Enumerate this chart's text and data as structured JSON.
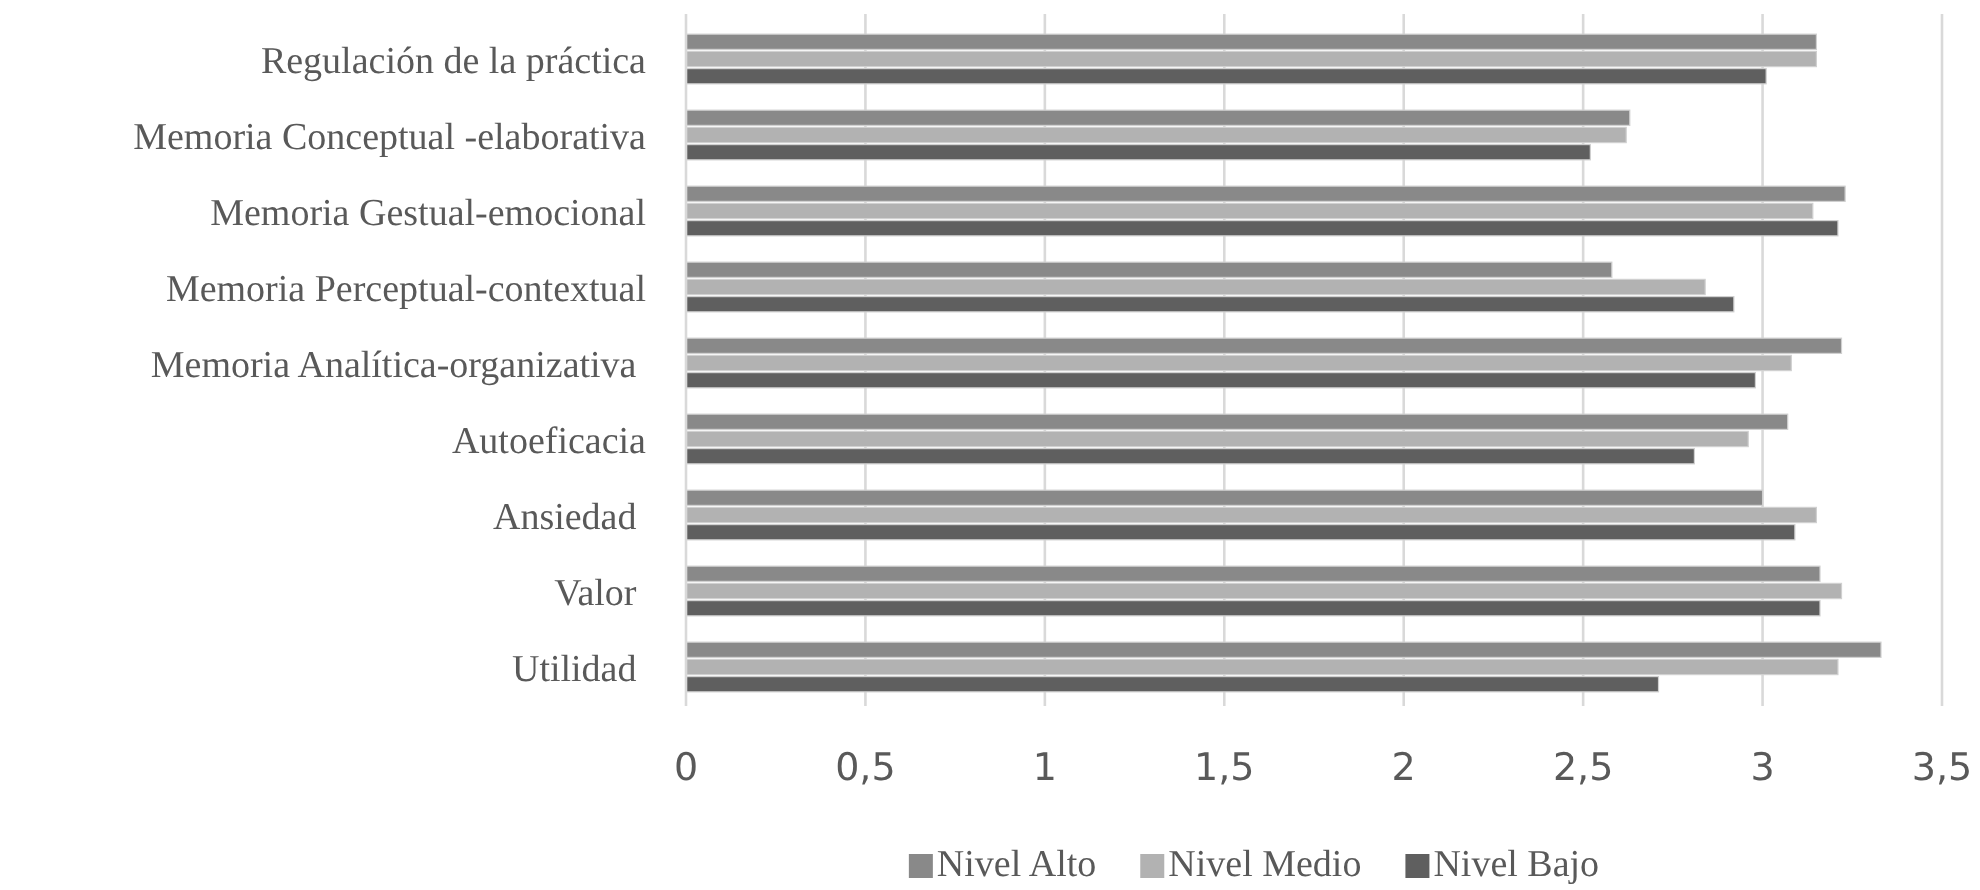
{
  "chart_data": {
    "type": "bar",
    "orientation": "horizontal",
    "categories": [
      "Regulación de la práctica",
      "Memoria Conceptual -elaborativa",
      "Memoria Gestual-emocional",
      "Memoria Perceptual-contextual",
      "Memoria Analítica-organizativa ",
      "Autoeficacia",
      "Ansiedad ",
      "Valor ",
      "Utilidad "
    ],
    "series": [
      {
        "name": "Nivel Alto",
        "color": "#898989",
        "values": [
          3.15,
          2.63,
          3.23,
          2.58,
          3.22,
          3.07,
          3.0,
          3.16,
          3.33
        ]
      },
      {
        "name": "Nivel Medio",
        "color": "#b2b2b2",
        "values": [
          3.15,
          2.62,
          3.14,
          2.84,
          3.08,
          2.96,
          3.15,
          3.22,
          3.21
        ]
      },
      {
        "name": "Nivel Bajo",
        "color": "#5f5f5f",
        "values": [
          3.01,
          2.52,
          3.21,
          2.92,
          2.98,
          2.81,
          3.09,
          3.16,
          2.71
        ]
      }
    ],
    "xlim": [
      0,
      3.5
    ],
    "xticks": [
      0,
      {
        "value": 0.5,
        "label": "0,5"
      },
      1,
      {
        "value": 1.5,
        "label": "1,5"
      },
      2,
      {
        "value": 2.5,
        "label": "2,5"
      },
      3,
      {
        "value": 3.5,
        "label": "3,5"
      }
    ],
    "grid": "x",
    "legend": "bottom"
  }
}
